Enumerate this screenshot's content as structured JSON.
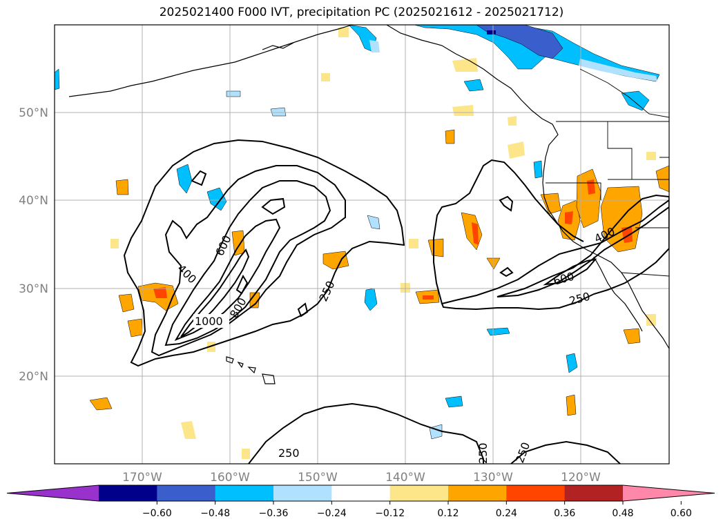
{
  "title": "2025021400 F000 IVT, precipitation PC (2025021612 - 2025021712)",
  "lat_labels": [
    {
      "lat": 50,
      "label": "50°N"
    },
    {
      "lat": 40,
      "label": "40°N"
    },
    {
      "lat": 30,
      "label": "30°N"
    },
    {
      "lat": 20,
      "label": "20°N"
    }
  ],
  "lon_labels": [
    {
      "lon": -170,
      "label": "170°W"
    },
    {
      "lon": -160,
      "label": "160°W"
    },
    {
      "lon": -150,
      "label": "150°W"
    },
    {
      "lon": -140,
      "label": "140°W"
    },
    {
      "lon": -130,
      "label": "130°W"
    },
    {
      "lon": -120,
      "label": "120°W"
    }
  ],
  "colorbar": {
    "colors": [
      "#9932cc",
      "#00008b",
      "#3a5fcd",
      "#00bfff",
      "#b0e2ff",
      "#ffffff",
      "#fde68a",
      "#ffa500",
      "#ff4500",
      "#b22222",
      "#ff88aa"
    ],
    "ticks": [
      "−0.60",
      "−0.48",
      "−0.36",
      "−0.24",
      "−0.12",
      "0.12",
      "0.24",
      "0.36",
      "0.48",
      "0.60"
    ]
  },
  "contour_labels": [
    {
      "text": "1000"
    },
    {
      "text": "800"
    },
    {
      "text": "600"
    },
    {
      "text": "400"
    },
    {
      "text": "250"
    },
    {
      "text": "600"
    },
    {
      "text": "400"
    },
    {
      "text": "250"
    },
    {
      "text": "250"
    },
    {
      "text": "250"
    },
    {
      "text": "250"
    }
  ]
}
